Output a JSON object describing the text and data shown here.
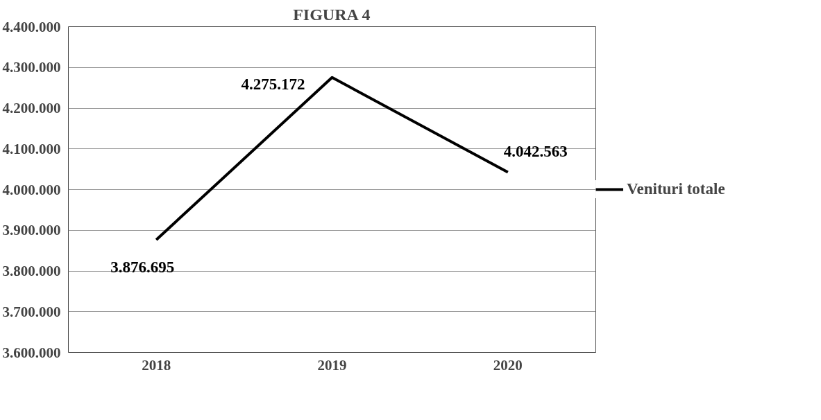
{
  "chart_data": {
    "type": "line",
    "title": "FIGURA 4",
    "categories": [
      "2018",
      "2019",
      "2020"
    ],
    "series": [
      {
        "name": "Venituri totale",
        "color": "#000000",
        "values": [
          3876695,
          4275172,
          4042563
        ],
        "value_labels": [
          "3.876.695",
          "4.275.172",
          "4.042.563"
        ]
      }
    ],
    "ylim": [
      3600000,
      4400000
    ],
    "yticks": [
      {
        "value": 3600000,
        "label": "3.600.000"
      },
      {
        "value": 3700000,
        "label": "3.700.000"
      },
      {
        "value": 3800000,
        "label": "3.800.000"
      },
      {
        "value": 3900000,
        "label": "3.900.000"
      },
      {
        "value": 4000000,
        "label": "4.000.000"
      },
      {
        "value": 4100000,
        "label": "4.100.000"
      },
      {
        "value": 4200000,
        "label": "4.200.000"
      },
      {
        "value": 4300000,
        "label": "4.300.000"
      },
      {
        "value": 4400000,
        "label": "4.400.000"
      }
    ],
    "grid": "y",
    "legend": "right",
    "marker": "none",
    "line_style": "solid"
  }
}
